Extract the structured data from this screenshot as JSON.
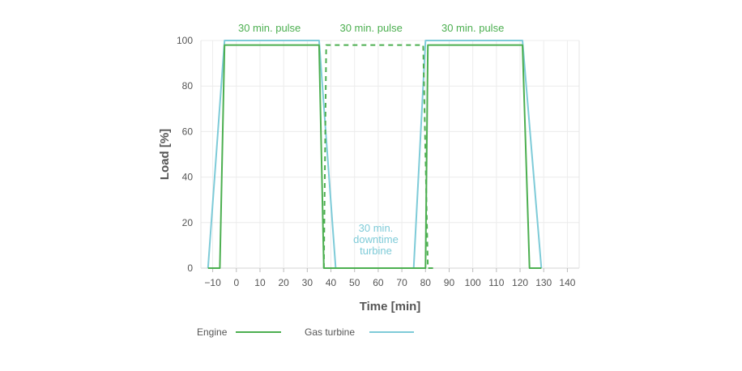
{
  "chart_data": {
    "type": "line",
    "xlabel": "Time [min]",
    "ylabel": "Load  [%]",
    "xlim": [
      -15,
      145
    ],
    "ylim": [
      0,
      100
    ],
    "x_ticks": [
      -10,
      0,
      10,
      20,
      30,
      40,
      50,
      60,
      70,
      80,
      90,
      100,
      110,
      120,
      130,
      140
    ],
    "y_ticks": [
      0,
      20,
      40,
      60,
      80,
      100
    ],
    "grid": true,
    "legend_position": "bottom",
    "series": [
      {
        "name": "Engine",
        "color": "#4caf50",
        "style": "solid",
        "points": [
          [
            -12,
            0
          ],
          [
            -7,
            0
          ],
          [
            -5,
            98
          ],
          [
            35,
            98
          ],
          [
            37,
            0
          ],
          [
            80,
            0
          ],
          [
            81,
            98
          ],
          [
            121,
            98
          ],
          [
            124,
            0
          ],
          [
            129,
            0
          ]
        ]
      },
      {
        "name": "Gas turbine",
        "color": "#7ecbd8",
        "style": "solid",
        "points": [
          [
            -12,
            0
          ],
          [
            -5,
            100
          ],
          [
            35,
            100
          ],
          [
            42,
            0
          ],
          [
            75,
            0
          ],
          [
            80,
            100
          ],
          [
            121,
            100
          ],
          [
            129,
            0
          ]
        ]
      },
      {
        "name": "",
        "color": "#4caf50",
        "style": "dashed",
        "points": [
          [
            37,
            0
          ],
          [
            38,
            98
          ],
          [
            79,
            98
          ],
          [
            81,
            0
          ],
          [
            84,
            0
          ]
        ]
      }
    ],
    "annotations": [
      {
        "text": "30 min. pulse",
        "x": 14,
        "y": 104,
        "color": "#4caf50"
      },
      {
        "text": "30 min. pulse",
        "x": 57,
        "y": 104,
        "color": "#4caf50"
      },
      {
        "text": "30 min. pulse",
        "x": 100,
        "y": 104,
        "color": "#4caf50"
      },
      {
        "text": "30 min.",
        "x": 59,
        "y": 16,
        "color": "#7ecbd8"
      },
      {
        "text": "downtime",
        "x": 59,
        "y": 11,
        "color": "#7ecbd8"
      },
      {
        "text": "turbine",
        "x": 59,
        "y": 6,
        "color": "#7ecbd8"
      }
    ]
  }
}
